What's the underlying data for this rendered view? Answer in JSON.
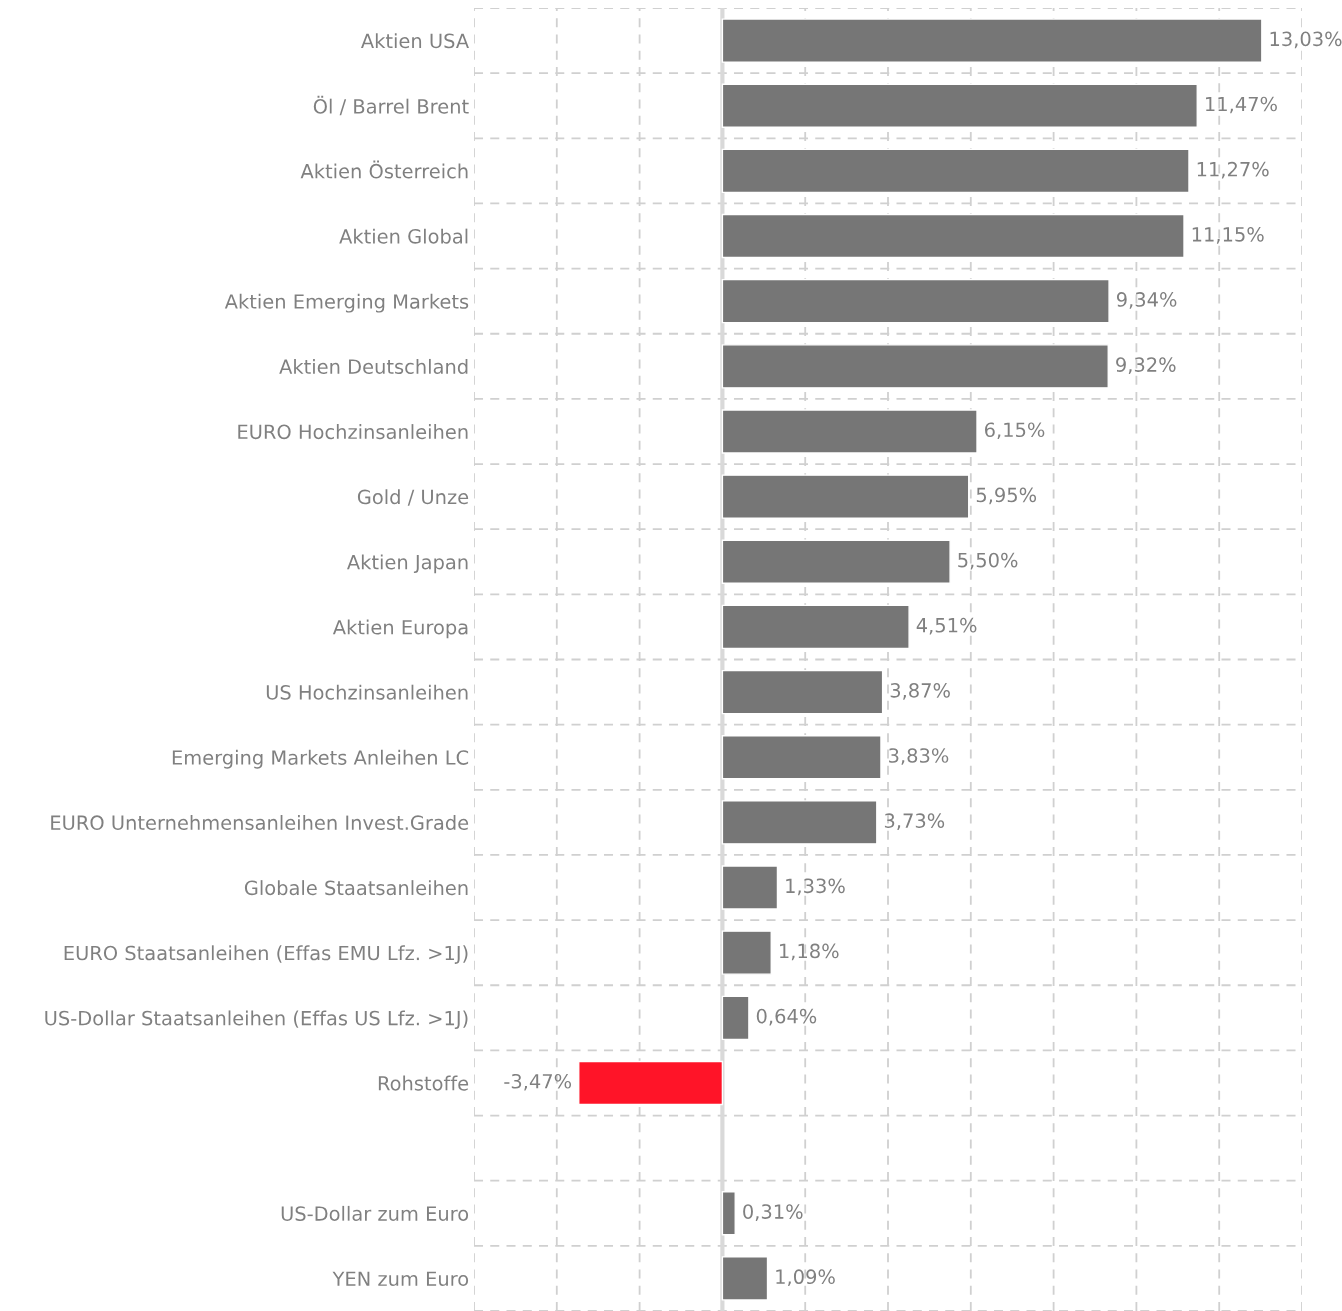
{
  "chart_data": {
    "type": "bar",
    "orientation": "horizontal",
    "categories": [
      "Aktien USA",
      "Öl / Barrel Brent",
      "Aktien Österreich",
      "Aktien Global",
      "Aktien Emerging Markets",
      "Aktien Deutschland",
      "EURO Hochzinsanleihen",
      "Gold / Unze",
      "Aktien Japan",
      "Aktien Europa",
      "US Hochzinsanleihen",
      "Emerging Markets Anleihen LC",
      "EURO Unternehmensanleihen Invest.Grade",
      "Globale Staatsanleihen",
      "EURO Staatsanleihen (Effas EMU Lfz. >1J)",
      "US-Dollar Staatsanleihen (Effas US Lfz. >1J)",
      "Rohstoffe",
      null,
      "US-Dollar zum Euro",
      "YEN zum Euro"
    ],
    "values": [
      13.03,
      11.47,
      11.27,
      11.15,
      9.34,
      9.32,
      6.15,
      5.95,
      5.5,
      4.51,
      3.87,
      3.83,
      3.73,
      1.33,
      1.18,
      0.64,
      -3.47,
      null,
      0.31,
      1.09
    ],
    "value_labels": [
      "13,03%",
      "11,47%",
      "11,27%",
      "11,15%",
      "9,34%",
      "9,32%",
      "6,15%",
      "5,95%",
      "5,50%",
      "4,51%",
      "3,87%",
      "3,83%",
      "3,73%",
      "1,33%",
      "1,18%",
      "0,64%",
      "-3,47%",
      null,
      "0,31%",
      "1,09%"
    ],
    "colors": [
      "#767676",
      "#767676",
      "#767676",
      "#767676",
      "#767676",
      "#767676",
      "#767676",
      "#767676",
      "#767676",
      "#767676",
      "#767676",
      "#767676",
      "#767676",
      "#767676",
      "#767676",
      "#767676",
      "#ff1428",
      null,
      "#767676",
      "#767676"
    ],
    "xlim": [
      -6,
      14
    ],
    "xticks": [
      {
        "value": -6,
        "label": null
      },
      {
        "value": -4,
        "label": null
      },
      {
        "value": -2,
        "label": null
      },
      {
        "value": 0,
        "label": null
      },
      {
        "value": 2,
        "label": null
      },
      {
        "value": 4,
        "label": null
      },
      {
        "value": 6,
        "label": null
      },
      {
        "value": 8,
        "label": null
      },
      {
        "value": 10,
        "label": null
      },
      {
        "value": 12,
        "label": null
      },
      {
        "value": 14,
        "label": null
      }
    ],
    "ref_lines": [
      {
        "axis": "x",
        "value": 0,
        "color": "#d9d9d9",
        "line_style": "solid"
      }
    ],
    "grid": true,
    "tick_labels": "y"
  }
}
